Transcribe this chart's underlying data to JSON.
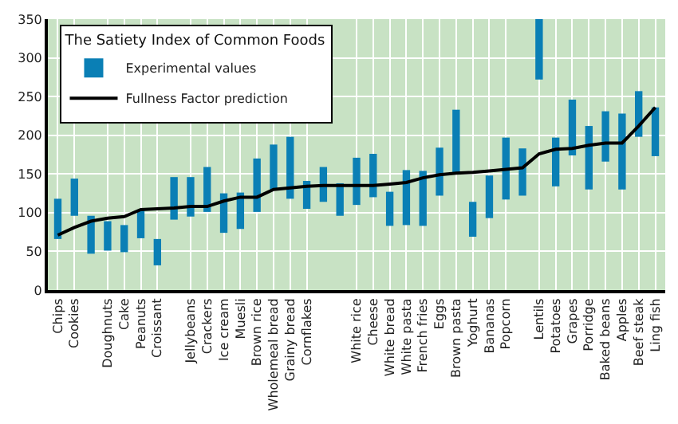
{
  "chart_data": {
    "type": "bar",
    "legend_title": "The Satiety Index of Common Foods",
    "categories": [
      "Chips",
      "Cookies",
      null,
      "Doughnuts",
      "Cake",
      "Peanuts",
      "Croissant",
      null,
      "Jellybeans",
      "Crackers",
      "Ice cream",
      "Muesli",
      "Brown rice",
      "Wholemeal bread",
      "Grainy bread",
      "Cornflakes",
      null,
      null,
      "White rice",
      "Cheese",
      "White bread",
      "White pasta",
      "French fries",
      "Eggs",
      "Brown pasta",
      "Yoghurt",
      "Bananas",
      "Popcorn",
      null,
      "Lentils",
      "Potatoes",
      "Grapes",
      "Porridge",
      "Baked beans",
      "Apples",
      "Beef steak",
      "Ling fish"
    ],
    "series": [
      {
        "name": "Experimental values",
        "color": "#0a7fb5",
        "base": [
          66,
          96,
          47,
          51,
          49,
          67,
          32,
          91,
          95,
          101,
          74,
          79,
          101,
          130,
          118,
          105,
          114,
          96,
          110,
          120,
          83,
          84,
          83,
          122,
          152,
          69,
          93,
          117,
          122,
          272,
          134,
          174,
          130,
          166,
          130,
          198,
          173
        ],
        "values": [
          52,
          48,
          49,
          38,
          35,
          37,
          34,
          55,
          51,
          58,
          51,
          47,
          69,
          58,
          80,
          36,
          45,
          42,
          61,
          56,
          44,
          71,
          71,
          62,
          81,
          45,
          55,
          80,
          61,
          78,
          63,
          72,
          82,
          65,
          98,
          59,
          63
        ]
      },
      {
        "name": "Fullness Factor prediction",
        "type": "line",
        "color": "#000000",
        "values": [
          71,
          81,
          89,
          93,
          95,
          104,
          105,
          106,
          108,
          108,
          115,
          120,
          120,
          130,
          132,
          134,
          135,
          135,
          135,
          135,
          137,
          139,
          145,
          149,
          151,
          152,
          154,
          156,
          158,
          176,
          182,
          183,
          187,
          190,
          190,
          212,
          236
        ]
      }
    ],
    "ylim": [
      0,
      350
    ],
    "yticks": [
      0,
      50,
      100,
      150,
      200,
      250,
      300,
      350
    ],
    "grid": true,
    "legend": "top left",
    "marker": "none",
    "line_style": "solid"
  }
}
